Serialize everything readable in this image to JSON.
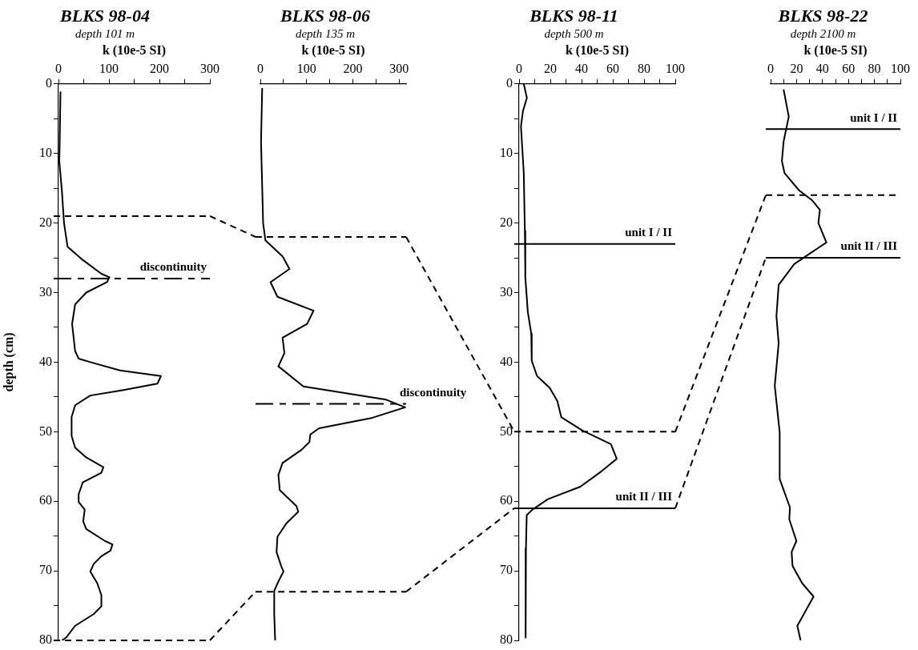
{
  "chart_data": [
    {
      "type": "line",
      "title": "BLKS 98-04",
      "subtitle": "depth 101 m",
      "xlabel": "k (10e-5 SI)",
      "ylabel": "depth (cm)",
      "legend": false,
      "grid": false,
      "xlim": [
        0,
        300
      ],
      "xticks": [
        0,
        {
          "value": 50,
          "label": null
        },
        100,
        {
          "value": 150,
          "label": null
        },
        200,
        {
          "value": 250,
          "label": null
        },
        300
      ],
      "ylim": [
        80,
        0
      ],
      "yticks": [
        0,
        {
          "value": 5,
          "label": null
        },
        10,
        {
          "value": 15,
          "label": null
        },
        20,
        {
          "value": 25,
          "label": null
        },
        30,
        {
          "value": 35,
          "label": null
        },
        40,
        {
          "value": 45,
          "label": null
        },
        50,
        {
          "value": 55,
          "label": null
        },
        60,
        {
          "value": 65,
          "label": null
        },
        70,
        {
          "value": 75,
          "label": null
        },
        80
      ],
      "series": [
        {
          "color": "#000000",
          "x": [
            4,
            2,
            1.5,
            7,
            11,
            18,
            48,
            85,
            101,
            96,
            55,
            33,
            27,
            33,
            40,
            63,
            122,
            203,
            196,
            129,
            63,
            33,
            26,
            26,
            33,
            55,
            89,
            85,
            48,
            40,
            40,
            52,
            49,
            55,
            92,
            107,
            103,
            85,
            70,
            63,
            77,
            85,
            85,
            70,
            33,
            15,
            7
          ],
          "values": [
            1.1,
            10,
            11,
            15.6,
            20,
            23.4,
            25.3,
            27.3,
            27.8,
            28.5,
            30,
            31.7,
            34.5,
            38.4,
            39.5,
            40,
            41.2,
            42,
            43.1,
            44,
            44.8,
            46.2,
            47.9,
            50.6,
            52.3,
            53.7,
            55.1,
            55.9,
            57.3,
            59,
            60.1,
            61.2,
            62.9,
            64,
            65.7,
            66.2,
            67.1,
            67.9,
            69,
            70.1,
            71.8,
            73.5,
            75.1,
            76.2,
            77.9,
            79.6,
            80
          ]
        }
      ],
      "ref_lines": [
        {
          "axis": "y",
          "value": 19,
          "line_style": "dashed",
          "color": "#000000"
        },
        {
          "axis": "y",
          "value": 28,
          "label": "discontinuity",
          "line_style": "dashdot",
          "color": "#000000"
        },
        {
          "axis": "y",
          "value": 80,
          "line_style": "dashed",
          "color": "#000000"
        }
      ]
    },
    {
      "type": "line",
      "title": "BLKS 98-06",
      "subtitle": "depth 135 m",
      "xlabel": "k (10e-5 SI)",
      "legend": false,
      "grid": false,
      "tick_labels": "x",
      "xlim": [
        0,
        315
      ],
      "xticks": [
        0,
        {
          "value": 50,
          "label": null
        },
        100,
        {
          "value": 150,
          "label": null
        },
        200,
        {
          "value": 250,
          "label": null
        },
        300
      ],
      "ylim": [
        80,
        0
      ],
      "yticks": [
        0,
        10,
        20,
        30,
        40,
        50,
        60,
        70,
        80
      ],
      "series": [
        {
          "color": "#000000",
          "x": [
            4,
            1.5,
            6,
            11,
            48,
            63,
            22,
            37,
            115,
            101,
            48,
            52,
            39,
            93,
            272,
            313,
            242,
            127,
            108,
            106,
            89,
            48,
            39,
            42,
            78,
            82,
            56,
            37,
            35,
            45,
            50,
            37,
            30,
            30,
            32
          ],
          "values": [
            0.6,
            8.3,
            20,
            22.5,
            24.8,
            26.6,
            28.5,
            30.6,
            32.6,
            34.5,
            36.5,
            38.7,
            40.6,
            43.5,
            45.4,
            46.5,
            48,
            49.5,
            50.4,
            51.5,
            52.6,
            54.5,
            56.2,
            58.4,
            60.7,
            61.5,
            63.2,
            65.1,
            67.3,
            69.3,
            70.1,
            71.8,
            72.9,
            76.2,
            80
          ]
        }
      ],
      "ref_lines": [
        {
          "axis": "y",
          "value": 22,
          "line_style": "dashed",
          "color": "#000000"
        },
        {
          "axis": "y",
          "value": 46,
          "label": "discontinuity",
          "line_style": "dashdot",
          "color": "#000000"
        },
        {
          "axis": "y",
          "value": 73,
          "line_style": "dashed",
          "color": "#000000"
        }
      ]
    },
    {
      "type": "line",
      "title": "BLKS 98-11",
      "subtitle": "depth 500 m",
      "xlabel": "k (10e-5 SI)",
      "legend": false,
      "grid": false,
      "xlim": [
        0,
        100
      ],
      "xticks": [
        0,
        {
          "value": 10,
          "label": null
        },
        20,
        {
          "value": 30,
          "label": null
        },
        40,
        {
          "value": 50,
          "label": null
        },
        60,
        {
          "value": 70,
          "label": null
        },
        80,
        {
          "value": 90,
          "label": null
        },
        100
      ],
      "ylim": [
        80,
        0
      ],
      "yticks": [
        0,
        {
          "value": 5,
          "label": null
        },
        10,
        {
          "value": 15,
          "label": null
        },
        20,
        {
          "value": 25,
          "label": null
        },
        30,
        {
          "value": 35,
          "label": null
        },
        40,
        {
          "value": 45,
          "label": null
        },
        50,
        {
          "value": 55,
          "label": null
        },
        60,
        {
          "value": 65,
          "label": null
        },
        70,
        {
          "value": 75,
          "label": null
        },
        80
      ],
      "series": [
        {
          "color": "#000000",
          "x": [
            3,
            5,
            2.5,
            1.2,
            3,
            3.7,
            4,
            5.6,
            7.8,
            8.1,
            11.5,
            19.6,
            24.5,
            27,
            40.4,
            58.8,
            62.5,
            52.7,
            39.2,
            18.4,
            8.6,
            4.9,
            4.4,
            4.2
          ],
          "values": [
            0,
            2,
            3.9,
            6.1,
            12.8,
            21.1,
            27.8,
            32.8,
            35.9,
            39.8,
            42,
            43.7,
            45.6,
            47.9,
            49.8,
            51.8,
            53.9,
            55.7,
            57.9,
            59.7,
            61.2,
            62,
            66.8,
            79.6
          ]
        }
      ],
      "ref_lines": [
        {
          "axis": "y",
          "value": 23,
          "label": "unit I / II",
          "line_style": "solid",
          "color": "#000000"
        },
        {
          "axis": "y",
          "value": 50,
          "line_style": "dashed",
          "color": "#000000"
        },
        {
          "axis": "y",
          "value": 61,
          "label": "unit II / III",
          "line_style": "solid",
          "color": "#000000"
        }
      ]
    },
    {
      "type": "line",
      "title": "BLKS 98-22",
      "subtitle": "depth 2100 m",
      "xlabel": "k (10e-5 SI)",
      "legend": false,
      "grid": false,
      "tick_labels": "x",
      "xlim": [
        0,
        100
      ],
      "xticks": [
        0,
        {
          "value": 10,
          "label": null
        },
        20,
        {
          "value": 30,
          "label": null
        },
        40,
        {
          "value": 50,
          "label": null
        },
        60,
        {
          "value": 70,
          "label": null
        },
        80,
        {
          "value": 90,
          "label": null
        },
        100
      ],
      "ylim": [
        80,
        0
      ],
      "yticks": [
        0,
        10,
        20,
        30,
        40,
        50,
        60,
        70,
        80
      ],
      "series": [
        {
          "color": "#000000",
          "x": [
            10,
            14,
            10,
            8.7,
            10.7,
            21.9,
            31.8,
            38,
            36.8,
            43,
            26.9,
            18.2,
            6.2,
            4.5,
            6.2,
            3.2,
            7,
            7,
            14.9,
            14.4,
            19.9,
            16.2,
            16.9,
            24.4,
            33.1,
            20.6,
            23.1
          ],
          "values": [
            0.8,
            4.7,
            8.3,
            11.1,
            12.8,
            15.3,
            16.7,
            18.1,
            20,
            22.8,
            24.8,
            25.9,
            28.9,
            33.4,
            37.3,
            43.4,
            50.1,
            56.8,
            60.9,
            62.6,
            65.7,
            67.3,
            69.3,
            71.8,
            73.7,
            77.9,
            80
          ]
        }
      ],
      "ref_lines": [
        {
          "axis": "y",
          "value": 6.5,
          "label": "unit I / II",
          "line_style": "solid",
          "color": "#000000"
        },
        {
          "axis": "y",
          "value": 16,
          "line_style": "dashed",
          "color": "#000000"
        },
        {
          "axis": "y",
          "value": 25,
          "label": "unit II / III",
          "line_style": "solid",
          "color": "#000000"
        }
      ]
    }
  ]
}
